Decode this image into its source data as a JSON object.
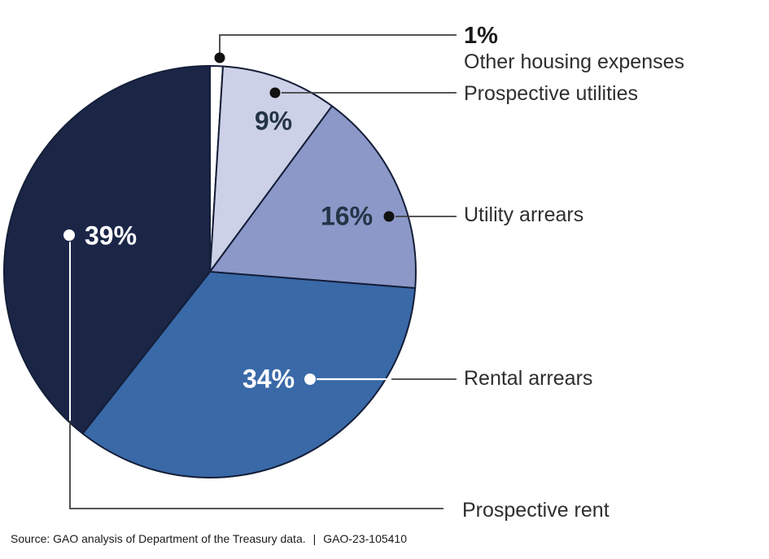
{
  "chart_data": {
    "type": "pie",
    "unit": "percent",
    "direction": "clockwise",
    "start_angle_deg": 0,
    "legend_position": "right-callouts",
    "stroke_color": "#141e38",
    "slices": [
      {
        "label": "Other housing expenses",
        "value": 1,
        "pct": "1%",
        "color": "#ffffff"
      },
      {
        "label": "Prospective utilities",
        "value": 9,
        "pct": "9%",
        "color": "#cdd1e8"
      },
      {
        "label": "Utility arrears",
        "value": 16,
        "pct": "16%",
        "color": "#8b98c8"
      },
      {
        "label": "Rental arrears",
        "value": 34,
        "pct": "34%",
        "color": "#3a69a8"
      },
      {
        "label": "Prospective rent",
        "value": 39,
        "pct": "39%",
        "color": "#1b2647"
      }
    ],
    "callout_colors": {
      "dark_dot": "#111111",
      "light_dot": "#ffffff",
      "leader_line": "#3f3f3f"
    }
  },
  "footer": {
    "source": "Source: GAO analysis of Department of the Treasury data.",
    "separator": "|",
    "report_number": "GAO-23-105410"
  }
}
